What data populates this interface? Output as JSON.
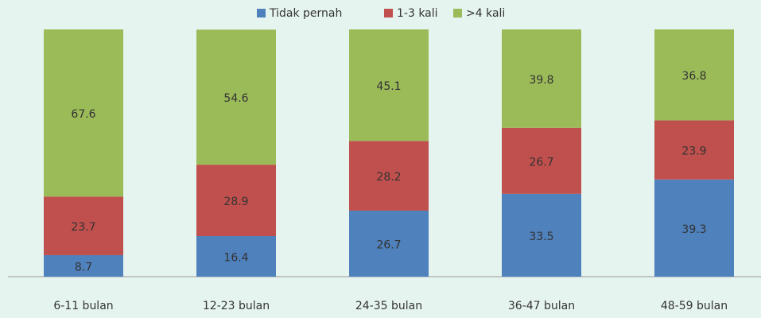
{
  "chart_data": {
    "type": "stacked_bar",
    "categories": [
      "6-11 bulan",
      "12-23 bulan",
      "24-35 bulan",
      "36-47 bulan",
      "48-59 bulan"
    ],
    "series": [
      {
        "name": "Tidak pernah",
        "color": "#4f81bd",
        "values": [
          8.7,
          16.4,
          26.7,
          33.5,
          39.3
        ]
      },
      {
        "name": "1-3 kali",
        "color": "#c0504d",
        "values": [
          23.7,
          28.9,
          28.2,
          26.7,
          23.9
        ]
      },
      {
        "name": ">4 kali",
        "color": "#9bbb59",
        "values": [
          67.6,
          54.6,
          45.1,
          39.8,
          36.8
        ]
      }
    ],
    "ylim": [
      0,
      100
    ],
    "legend": "top"
  }
}
